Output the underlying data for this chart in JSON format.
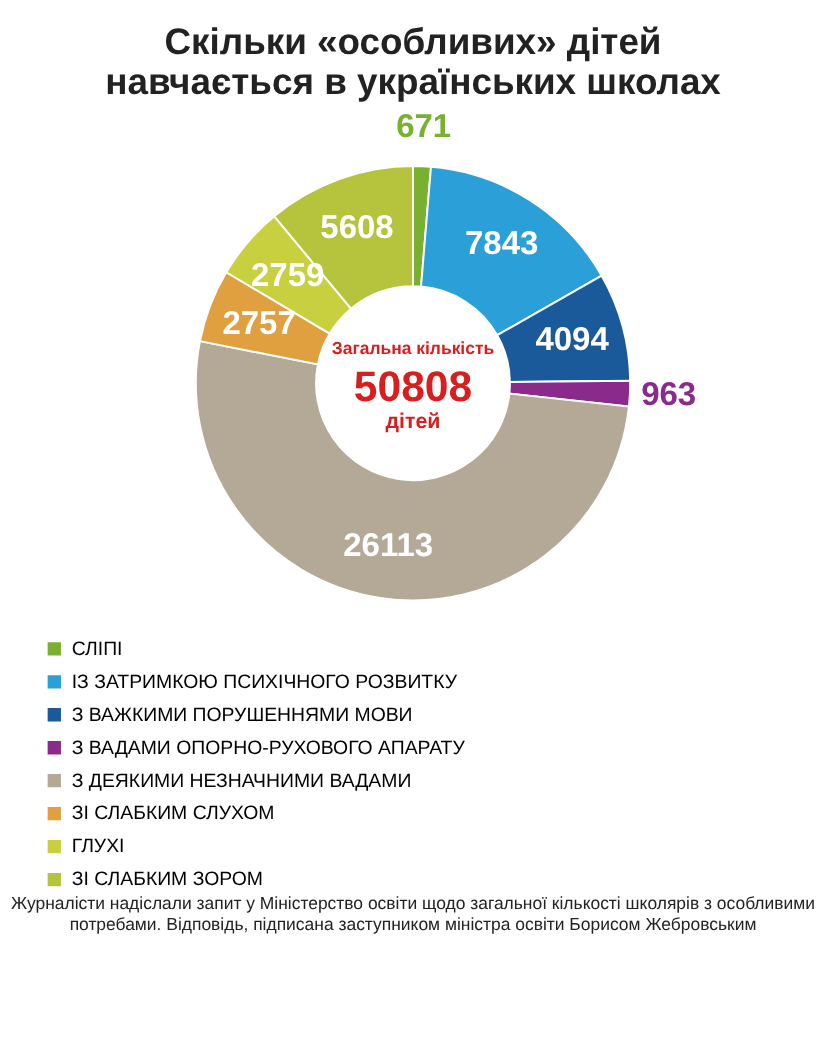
{
  "chart_data": {
    "type": "donut",
    "title": [
      "Скільки «особливих» дітей",
      "навчається в українських школах"
    ],
    "categories": [
      "СЛІПІ",
      "ІЗ ЗАТРИМКОЮ ПСИХІЧНОГО РОЗВИТКУ",
      "З ВАЖКИМИ ПОРУШЕННЯМИ МОВИ",
      "З ВАДАМИ ОПОРНО-РУХОВОГО АПАРАТУ",
      "З ДЕЯКИМИ НЕЗНАЧНИМИ ВАДАМИ",
      "ЗІ СЛАБКИМ СЛУХОМ",
      "ГЛУХІ",
      "ЗІ СЛАБКИМ ЗОРОМ"
    ],
    "values": [
      671,
      7843,
      4094,
      963,
      26113,
      2757,
      2759,
      5608
    ],
    "colors": [
      "#7ab030",
      "#2a9fd8",
      "#1a5a9a",
      "#8a2a8a",
      "#b3a996",
      "#e0a040",
      "#c8d040",
      "#b5c43c"
    ],
    "data_labels": true,
    "legend": "bottom",
    "annotations": [
      "Загальна кількість",
      "50808",
      "дітей",
      "Журналісти надіслали запит у Міністерство освіти щодо загальної кількості школярів з особливими потребами. Відповідь, підписана заступником міністра освіти Борисом Жебровським"
    ]
  }
}
